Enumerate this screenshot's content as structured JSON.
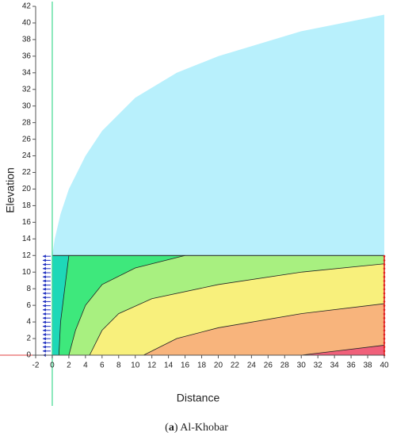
{
  "chart_data": {
    "type": "contour",
    "xlabel": "Distance",
    "ylabel": "Elevation",
    "caption": [
      "(",
      "a",
      ") Al-Khobar"
    ],
    "xlim": [
      -2,
      40
    ],
    "ylim": [
      0,
      42
    ],
    "xticks": [
      -2,
      0,
      2,
      4,
      6,
      8,
      10,
      12,
      14,
      16,
      18,
      20,
      22,
      24,
      26,
      28,
      30,
      32,
      34,
      36,
      38,
      40
    ],
    "yticks": [
      0,
      2,
      4,
      6,
      8,
      10,
      12,
      14,
      16,
      18,
      20,
      22,
      24,
      26,
      28,
      30,
      32,
      34,
      36,
      38,
      40,
      42
    ],
    "area": {
      "color": "#b8f0fc",
      "x": [
        0,
        0.3,
        1,
        2,
        4,
        6,
        10,
        15,
        20,
        25,
        30,
        35,
        40
      ],
      "values": [
        12,
        14,
        17,
        20,
        24,
        27,
        31,
        34,
        36,
        37.5,
        39,
        40,
        41
      ]
    },
    "color": "#1ed8b8",
    "series": [
      {
        "color": "#3ee87c",
        "x": [
          2,
          1.5,
          1,
          0.8
        ],
        "values": [
          12,
          8,
          4,
          0
        ]
      },
      {
        "color": "#a8f080",
        "x": [
          16,
          10,
          6,
          4,
          2.8,
          2
        ],
        "values": [
          12,
          10.5,
          8.5,
          6,
          3,
          0
        ]
      },
      {
        "color": "#f8f07c",
        "x": [
          40,
          30,
          20,
          12,
          8,
          6,
          4.5
        ],
        "values": [
          11,
          10,
          8.5,
          6.8,
          5,
          3,
          0
        ]
      },
      {
        "color": "#f8b47c",
        "x": [
          40,
          30,
          20,
          15,
          11
        ],
        "values": [
          6.2,
          5,
          3.3,
          2,
          0
        ]
      },
      {
        "color": "#f0607a",
        "x": [
          40,
          35,
          30
        ],
        "values": [
          1.2,
          0.6,
          0
        ]
      }
    ]
  }
}
